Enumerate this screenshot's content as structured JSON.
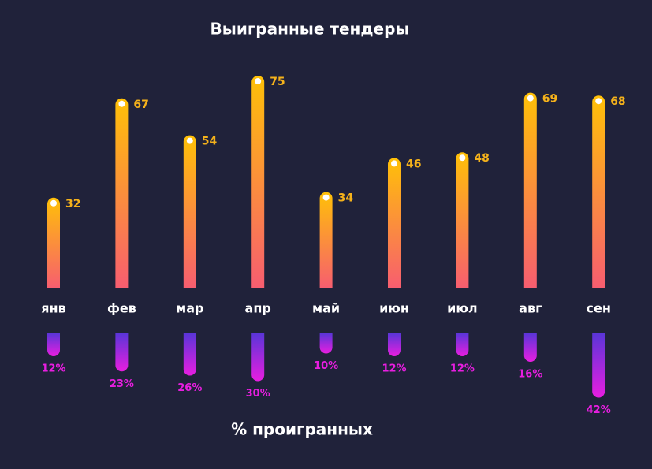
{
  "chart_data": [
    {
      "type": "bar",
      "title": "Выигранные тендеры",
      "categories": [
        "янв",
        "фев",
        "мар",
        "апр",
        "май",
        "июн",
        "июл",
        "авг",
        "сен"
      ],
      "values": [
        32,
        67,
        54,
        75,
        34,
        46,
        48,
        69,
        68
      ]
    },
    {
      "type": "bar-down",
      "title": "% проигранных",
      "values": [
        12,
        23,
        26,
        30,
        10,
        12,
        12,
        16,
        42
      ],
      "value_labels": [
        "12%",
        "23%",
        "26%",
        "30%",
        "10%",
        "12%",
        "12%",
        "16%",
        "42%"
      ]
    }
  ]
}
